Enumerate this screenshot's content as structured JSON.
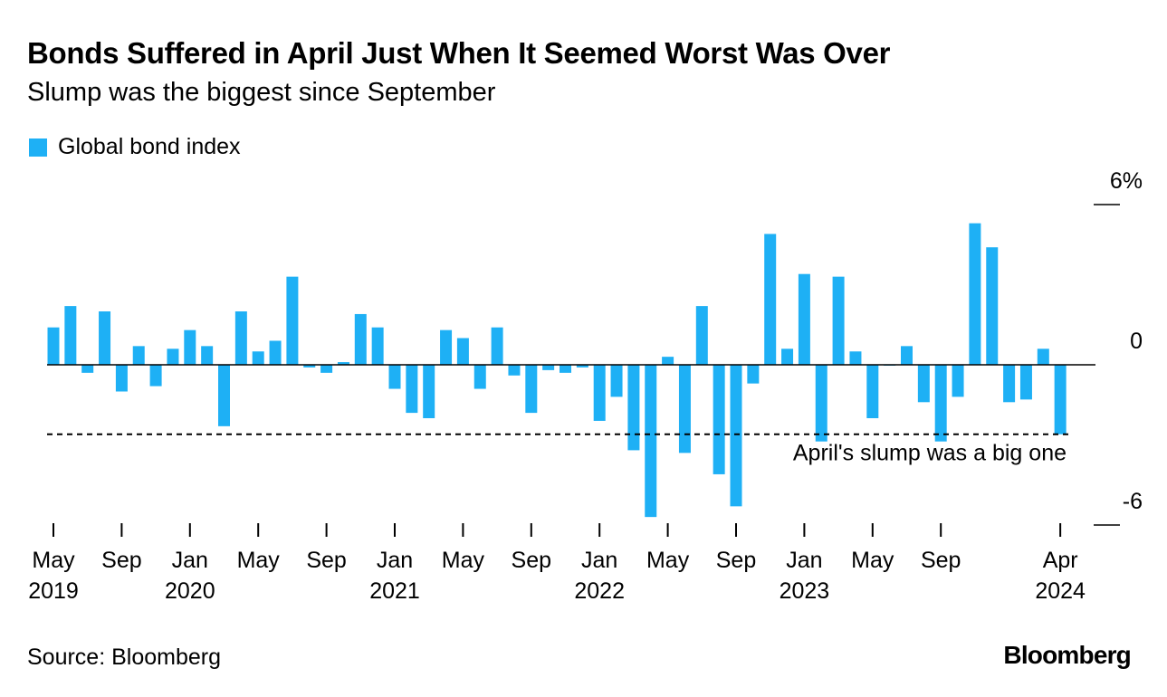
{
  "header": {
    "title": "Bonds Suffered in April Just When It Seemed Worst Was Over",
    "subtitle": "Slump was the biggest since September"
  },
  "footer": {
    "source": "Source: Bloomberg",
    "logo": "Bloomberg"
  },
  "colors": {
    "bar": "#1EB0F5",
    "axis": "#000000"
  },
  "chart_data": {
    "type": "bar",
    "title": "Bonds Suffered in April Just When It Seemed Worst Was Over",
    "subtitle": "Slump was the biggest since September",
    "legend": {
      "position": "top-left",
      "entries": [
        "Global bond index"
      ]
    },
    "series": [
      {
        "name": "Global bond index",
        "color": "#1EB0F5",
        "values": [
          1.4,
          2.2,
          -0.3,
          2.0,
          -1.0,
          0.7,
          -0.8,
          0.6,
          1.3,
          0.7,
          -2.3,
          2.0,
          0.5,
          0.9,
          3.3,
          -0.1,
          -0.3,
          0.1,
          1.9,
          1.4,
          -0.9,
          -1.8,
          -2.0,
          1.3,
          1.0,
          -0.9,
          1.4,
          -0.4,
          -1.8,
          -0.2,
          -0.3,
          -0.1,
          -2.1,
          -1.2,
          -3.2,
          -5.7,
          0.3,
          -3.3,
          2.2,
          -4.1,
          -5.3,
          -0.7,
          4.9,
          0.6,
          3.4,
          -3.4,
          3.3,
          0.5,
          -2.0,
          0.0,
          0.7,
          -1.4,
          -3.0,
          -1.2,
          5.3,
          4.4,
          -1.4,
          -1.3,
          0.6,
          -2.6
        ]
      }
    ],
    "x_start": "2019-05",
    "x_end": "2024-04",
    "x_ticks": [
      {
        "month": "2019-05",
        "label": "May",
        "year": "2019"
      },
      {
        "month": "2019-09",
        "label": "Sep",
        "year": ""
      },
      {
        "month": "2020-01",
        "label": "Jan",
        "year": "2020"
      },
      {
        "month": "2020-05",
        "label": "May",
        "year": ""
      },
      {
        "month": "2020-09",
        "label": "Sep",
        "year": ""
      },
      {
        "month": "2021-01",
        "label": "Jan",
        "year": "2021"
      },
      {
        "month": "2021-05",
        "label": "May",
        "year": ""
      },
      {
        "month": "2021-09",
        "label": "Sep",
        "year": ""
      },
      {
        "month": "2022-01",
        "label": "Jan",
        "year": "2022"
      },
      {
        "month": "2022-05",
        "label": "May",
        "year": ""
      },
      {
        "month": "2022-09",
        "label": "Sep",
        "year": ""
      },
      {
        "month": "2023-01",
        "label": "Jan",
        "year": "2023"
      },
      {
        "month": "2023-05",
        "label": "May",
        "year": ""
      },
      {
        "month": "2023-09",
        "label": "Sep",
        "year": ""
      },
      {
        "month": "2024-04",
        "label": "Apr",
        "year": "2024"
      }
    ],
    "ylim": [
      -6,
      6
    ],
    "y_ticks": [
      {
        "value": 6,
        "label": "6%"
      },
      {
        "value": 0,
        "label": "0"
      },
      {
        "value": -6,
        "label": "-6"
      }
    ],
    "reference_line": {
      "value": -2.6,
      "style": "dashed",
      "label": "April's slump was a big one"
    },
    "grid": false
  }
}
